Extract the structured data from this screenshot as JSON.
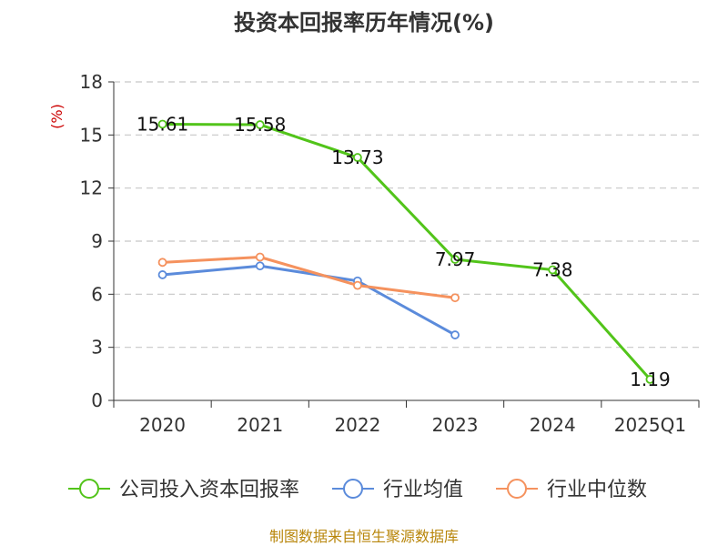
{
  "title": "投资本回报率历年情况(%)",
  "source": "制图数据来自恒生聚源数据库",
  "chart_data": {
    "type": "line",
    "title": "投资本回报率历年情况(%)",
    "ylabel": "(%)",
    "categories": [
      "2020",
      "2021",
      "2022",
      "2023",
      "2024",
      "2025Q1"
    ],
    "ylim": [
      0,
      18
    ],
    "yticks": [
      0,
      3,
      6,
      9,
      12,
      15,
      18
    ],
    "grid": true,
    "legend": "bottom",
    "series": [
      {
        "name": "公司投入资本回报率",
        "color": "#52c41a",
        "values": [
          15.61,
          15.58,
          13.73,
          7.97,
          7.38,
          1.19
        ],
        "labels": [
          "15.61",
          "15.58",
          "13.73",
          "7.97",
          "7.38",
          "1.19"
        ]
      },
      {
        "name": "行业均值",
        "color": "#5b8bdb",
        "values": [
          7.1,
          7.6,
          6.75,
          3.7,
          null,
          null
        ]
      },
      {
        "name": "行业中位数",
        "color": "#f5925e",
        "values": [
          7.8,
          8.1,
          6.5,
          5.8,
          null,
          null
        ]
      }
    ]
  }
}
